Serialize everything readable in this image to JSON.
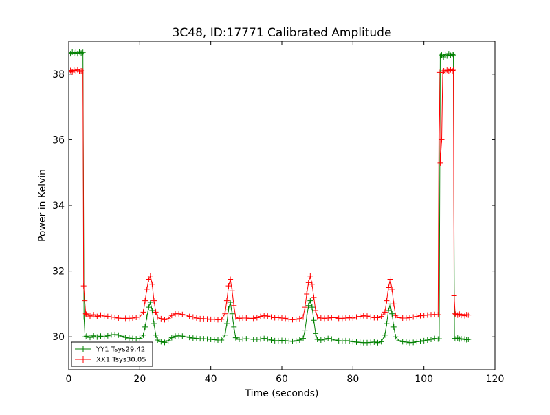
{
  "chart_data": {
    "type": "line",
    "title": "3C48, ID:17771 Calibrated Amplitude",
    "xlabel": "Time (seconds)",
    "ylabel": "Power in Kelvin",
    "xlim": [
      0,
      120
    ],
    "ylim": [
      29,
      39
    ],
    "xticks": [
      0,
      20,
      40,
      60,
      80,
      100,
      120
    ],
    "yticks": [
      30,
      32,
      34,
      36,
      38
    ],
    "grid": false,
    "legend_position": "lower-left",
    "marker": "plus",
    "series": [
      {
        "name": "YY1 Tsys29.42",
        "color": "#008000",
        "points": [
          [
            0,
            38.65
          ],
          [
            0.5,
            38.62
          ],
          [
            1,
            38.67
          ],
          [
            1.5,
            38.63
          ],
          [
            2,
            38.66
          ],
          [
            2.5,
            38.62
          ],
          [
            3,
            38.68
          ],
          [
            3.5,
            38.64
          ],
          [
            4,
            38.66
          ],
          [
            4.3,
            30.6
          ],
          [
            4.6,
            30.0
          ],
          [
            5,
            30.02
          ],
          [
            6,
            29.98
          ],
          [
            7,
            30.03
          ],
          [
            8,
            29.99
          ],
          [
            9,
            30.02
          ],
          [
            10,
            30.0
          ],
          [
            11,
            30.03
          ],
          [
            12,
            30.06
          ],
          [
            13,
            30.07
          ],
          [
            14,
            30.05
          ],
          [
            15,
            30.02
          ],
          [
            16,
            29.98
          ],
          [
            17,
            29.96
          ],
          [
            18,
            29.95
          ],
          [
            19,
            29.94
          ],
          [
            20,
            29.95
          ],
          [
            21,
            30.05
          ],
          [
            21.5,
            30.3
          ],
          [
            22,
            30.6
          ],
          [
            22.5,
            30.9
          ],
          [
            23,
            31.05
          ],
          [
            23.5,
            30.8
          ],
          [
            24,
            30.4
          ],
          [
            24.5,
            30.05
          ],
          [
            25,
            29.9
          ],
          [
            26,
            29.85
          ],
          [
            27,
            29.83
          ],
          [
            28,
            29.88
          ],
          [
            29,
            29.97
          ],
          [
            30,
            30.02
          ],
          [
            31,
            30.03
          ],
          [
            32,
            30.02
          ],
          [
            33,
            30.0
          ],
          [
            34,
            29.98
          ],
          [
            35,
            29.96
          ],
          [
            36,
            29.95
          ],
          [
            37,
            29.94
          ],
          [
            38,
            29.94
          ],
          [
            39,
            29.93
          ],
          [
            40,
            29.92
          ],
          [
            41,
            29.91
          ],
          [
            42,
            29.9
          ],
          [
            43,
            29.9
          ],
          [
            44,
            30.05
          ],
          [
            44.5,
            30.4
          ],
          [
            45,
            30.85
          ],
          [
            45.5,
            31.05
          ],
          [
            46,
            30.7
          ],
          [
            46.5,
            30.3
          ],
          [
            47,
            29.97
          ],
          [
            48,
            29.92
          ],
          [
            49,
            29.93
          ],
          [
            50,
            29.94
          ],
          [
            51,
            29.93
          ],
          [
            52,
            29.92
          ],
          [
            53,
            29.92
          ],
          [
            54,
            29.93
          ],
          [
            55,
            29.95
          ],
          [
            56,
            29.93
          ],
          [
            57,
            29.9
          ],
          [
            58,
            29.88
          ],
          [
            59,
            29.88
          ],
          [
            60,
            29.89
          ],
          [
            61,
            29.88
          ],
          [
            62,
            29.87
          ],
          [
            63,
            29.86
          ],
          [
            64,
            29.88
          ],
          [
            65,
            29.9
          ],
          [
            66,
            29.95
          ],
          [
            66.5,
            30.2
          ],
          [
            67,
            30.6
          ],
          [
            67.5,
            30.95
          ],
          [
            68,
            31.1
          ],
          [
            68.5,
            30.9
          ],
          [
            69,
            30.5
          ],
          [
            69.5,
            30.1
          ],
          [
            70,
            29.92
          ],
          [
            71,
            29.9
          ],
          [
            72,
            29.92
          ],
          [
            73,
            29.95
          ],
          [
            74,
            29.93
          ],
          [
            75,
            29.9
          ],
          [
            76,
            29.88
          ],
          [
            77,
            29.87
          ],
          [
            78,
            29.88
          ],
          [
            79,
            29.87
          ],
          [
            80,
            29.85
          ],
          [
            81,
            29.84
          ],
          [
            82,
            29.83
          ],
          [
            83,
            29.82
          ],
          [
            84,
            29.82
          ],
          [
            85,
            29.83
          ],
          [
            86,
            29.84
          ],
          [
            87,
            29.82
          ],
          [
            88,
            29.85
          ],
          [
            89,
            30.05
          ],
          [
            89.5,
            30.4
          ],
          [
            90,
            30.8
          ],
          [
            90.5,
            31.0
          ],
          [
            91,
            30.7
          ],
          [
            91.5,
            30.3
          ],
          [
            92,
            30.0
          ],
          [
            93,
            29.88
          ],
          [
            94,
            29.85
          ],
          [
            95,
            29.84
          ],
          [
            96,
            29.82
          ],
          [
            97,
            29.83
          ],
          [
            98,
            29.85
          ],
          [
            99,
            29.86
          ],
          [
            100,
            29.88
          ],
          [
            101,
            29.9
          ],
          [
            102,
            29.92
          ],
          [
            103,
            29.95
          ],
          [
            104,
            29.93
          ],
          [
            104.3,
            29.94
          ],
          [
            104.6,
            38.55
          ],
          [
            105,
            38.58
          ],
          [
            105.5,
            38.52
          ],
          [
            106,
            38.6
          ],
          [
            106.5,
            38.55
          ],
          [
            107,
            38.62
          ],
          [
            107.5,
            38.57
          ],
          [
            108,
            38.6
          ],
          [
            108.3,
            38.58
          ],
          [
            108.6,
            29.95
          ],
          [
            109,
            29.94
          ],
          [
            109.5,
            29.96
          ],
          [
            110,
            29.93
          ],
          [
            110.5,
            29.94
          ],
          [
            111,
            29.92
          ],
          [
            111.5,
            29.93
          ],
          [
            112,
            29.91
          ],
          [
            112.5,
            29.92
          ]
        ]
      },
      {
        "name": "XX1 Tsys30.05",
        "color": "#ff0000",
        "points": [
          [
            0,
            38.08
          ],
          [
            0.5,
            38.11
          ],
          [
            1,
            38.06
          ],
          [
            1.5,
            38.12
          ],
          [
            2,
            38.09
          ],
          [
            2.5,
            38.13
          ],
          [
            3,
            38.08
          ],
          [
            3.5,
            38.1
          ],
          [
            4,
            38.09
          ],
          [
            4.2,
            31.55
          ],
          [
            4.5,
            31.1
          ],
          [
            4.8,
            30.7
          ],
          [
            5,
            30.68
          ],
          [
            6,
            30.63
          ],
          [
            7,
            30.67
          ],
          [
            8,
            30.62
          ],
          [
            9,
            30.66
          ],
          [
            10,
            30.63
          ],
          [
            11,
            30.62
          ],
          [
            12,
            30.6
          ],
          [
            13,
            30.59
          ],
          [
            14,
            30.57
          ],
          [
            15,
            30.56
          ],
          [
            16,
            30.56
          ],
          [
            17,
            30.56
          ],
          [
            18,
            30.57
          ],
          [
            19,
            30.59
          ],
          [
            20,
            30.6
          ],
          [
            21,
            30.75
          ],
          [
            21.5,
            31.1
          ],
          [
            22,
            31.45
          ],
          [
            22.5,
            31.75
          ],
          [
            23,
            31.85
          ],
          [
            23.5,
            31.6
          ],
          [
            24,
            31.1
          ],
          [
            24.5,
            30.75
          ],
          [
            25,
            30.6
          ],
          [
            26,
            30.55
          ],
          [
            27,
            30.52
          ],
          [
            28,
            30.55
          ],
          [
            29,
            30.65
          ],
          [
            30,
            30.7
          ],
          [
            31,
            30.7
          ],
          [
            32,
            30.68
          ],
          [
            33,
            30.66
          ],
          [
            34,
            30.62
          ],
          [
            35,
            30.6
          ],
          [
            36,
            30.57
          ],
          [
            37,
            30.55
          ],
          [
            38,
            30.55
          ],
          [
            39,
            30.54
          ],
          [
            40,
            30.53
          ],
          [
            41,
            30.53
          ],
          [
            42,
            30.52
          ],
          [
            43,
            30.53
          ],
          [
            44,
            30.7
          ],
          [
            44.5,
            31.1
          ],
          [
            45,
            31.55
          ],
          [
            45.5,
            31.75
          ],
          [
            46,
            31.4
          ],
          [
            46.5,
            30.95
          ],
          [
            47,
            30.6
          ],
          [
            48,
            30.56
          ],
          [
            49,
            30.57
          ],
          [
            50,
            30.57
          ],
          [
            51,
            30.56
          ],
          [
            52,
            30.56
          ],
          [
            53,
            30.58
          ],
          [
            54,
            30.62
          ],
          [
            55,
            30.64
          ],
          [
            56,
            30.63
          ],
          [
            57,
            30.6
          ],
          [
            58,
            30.58
          ],
          [
            59,
            30.58
          ],
          [
            60,
            30.57
          ],
          [
            61,
            30.56
          ],
          [
            62,
            30.53
          ],
          [
            63,
            30.52
          ],
          [
            64,
            30.53
          ],
          [
            65,
            30.55
          ],
          [
            66,
            30.6
          ],
          [
            66.5,
            30.9
          ],
          [
            67,
            31.3
          ],
          [
            67.5,
            31.65
          ],
          [
            68,
            31.85
          ],
          [
            68.5,
            31.6
          ],
          [
            69,
            31.2
          ],
          [
            69.5,
            30.8
          ],
          [
            70,
            30.6
          ],
          [
            71,
            30.57
          ],
          [
            72,
            30.56
          ],
          [
            73,
            30.57
          ],
          [
            74,
            30.58
          ],
          [
            75,
            30.58
          ],
          [
            76,
            30.56
          ],
          [
            77,
            30.56
          ],
          [
            78,
            30.57
          ],
          [
            79,
            30.58
          ],
          [
            80,
            30.57
          ],
          [
            81,
            30.6
          ],
          [
            82,
            30.62
          ],
          [
            83,
            30.64
          ],
          [
            84,
            30.63
          ],
          [
            85,
            30.6
          ],
          [
            86,
            30.58
          ],
          [
            87,
            30.58
          ],
          [
            88,
            30.62
          ],
          [
            89,
            30.75
          ],
          [
            89.5,
            31.1
          ],
          [
            90,
            31.5
          ],
          [
            90.5,
            31.75
          ],
          [
            91,
            31.45
          ],
          [
            91.5,
            31.0
          ],
          [
            92,
            30.65
          ],
          [
            93,
            30.58
          ],
          [
            94,
            30.57
          ],
          [
            95,
            30.57
          ],
          [
            96,
            30.58
          ],
          [
            97,
            30.6
          ],
          [
            98,
            30.62
          ],
          [
            99,
            30.64
          ],
          [
            100,
            30.65
          ],
          [
            101,
            30.66
          ],
          [
            102,
            30.67
          ],
          [
            103,
            30.68
          ],
          [
            104,
            30.67
          ],
          [
            104.3,
            38.05
          ],
          [
            104.6,
            35.3
          ],
          [
            105,
            36.0
          ],
          [
            105.3,
            38.05
          ],
          [
            105.6,
            38.1
          ],
          [
            106,
            38.08
          ],
          [
            106.5,
            38.12
          ],
          [
            107,
            38.09
          ],
          [
            107.5,
            38.13
          ],
          [
            108,
            38.1
          ],
          [
            108.3,
            38.12
          ],
          [
            108.5,
            31.25
          ],
          [
            108.8,
            30.7
          ],
          [
            109,
            30.68
          ],
          [
            109.5,
            30.66
          ],
          [
            110,
            30.69
          ],
          [
            110.5,
            30.65
          ],
          [
            111,
            30.68
          ],
          [
            111.5,
            30.64
          ],
          [
            112,
            30.67
          ],
          [
            112.5,
            30.66
          ]
        ]
      }
    ]
  }
}
